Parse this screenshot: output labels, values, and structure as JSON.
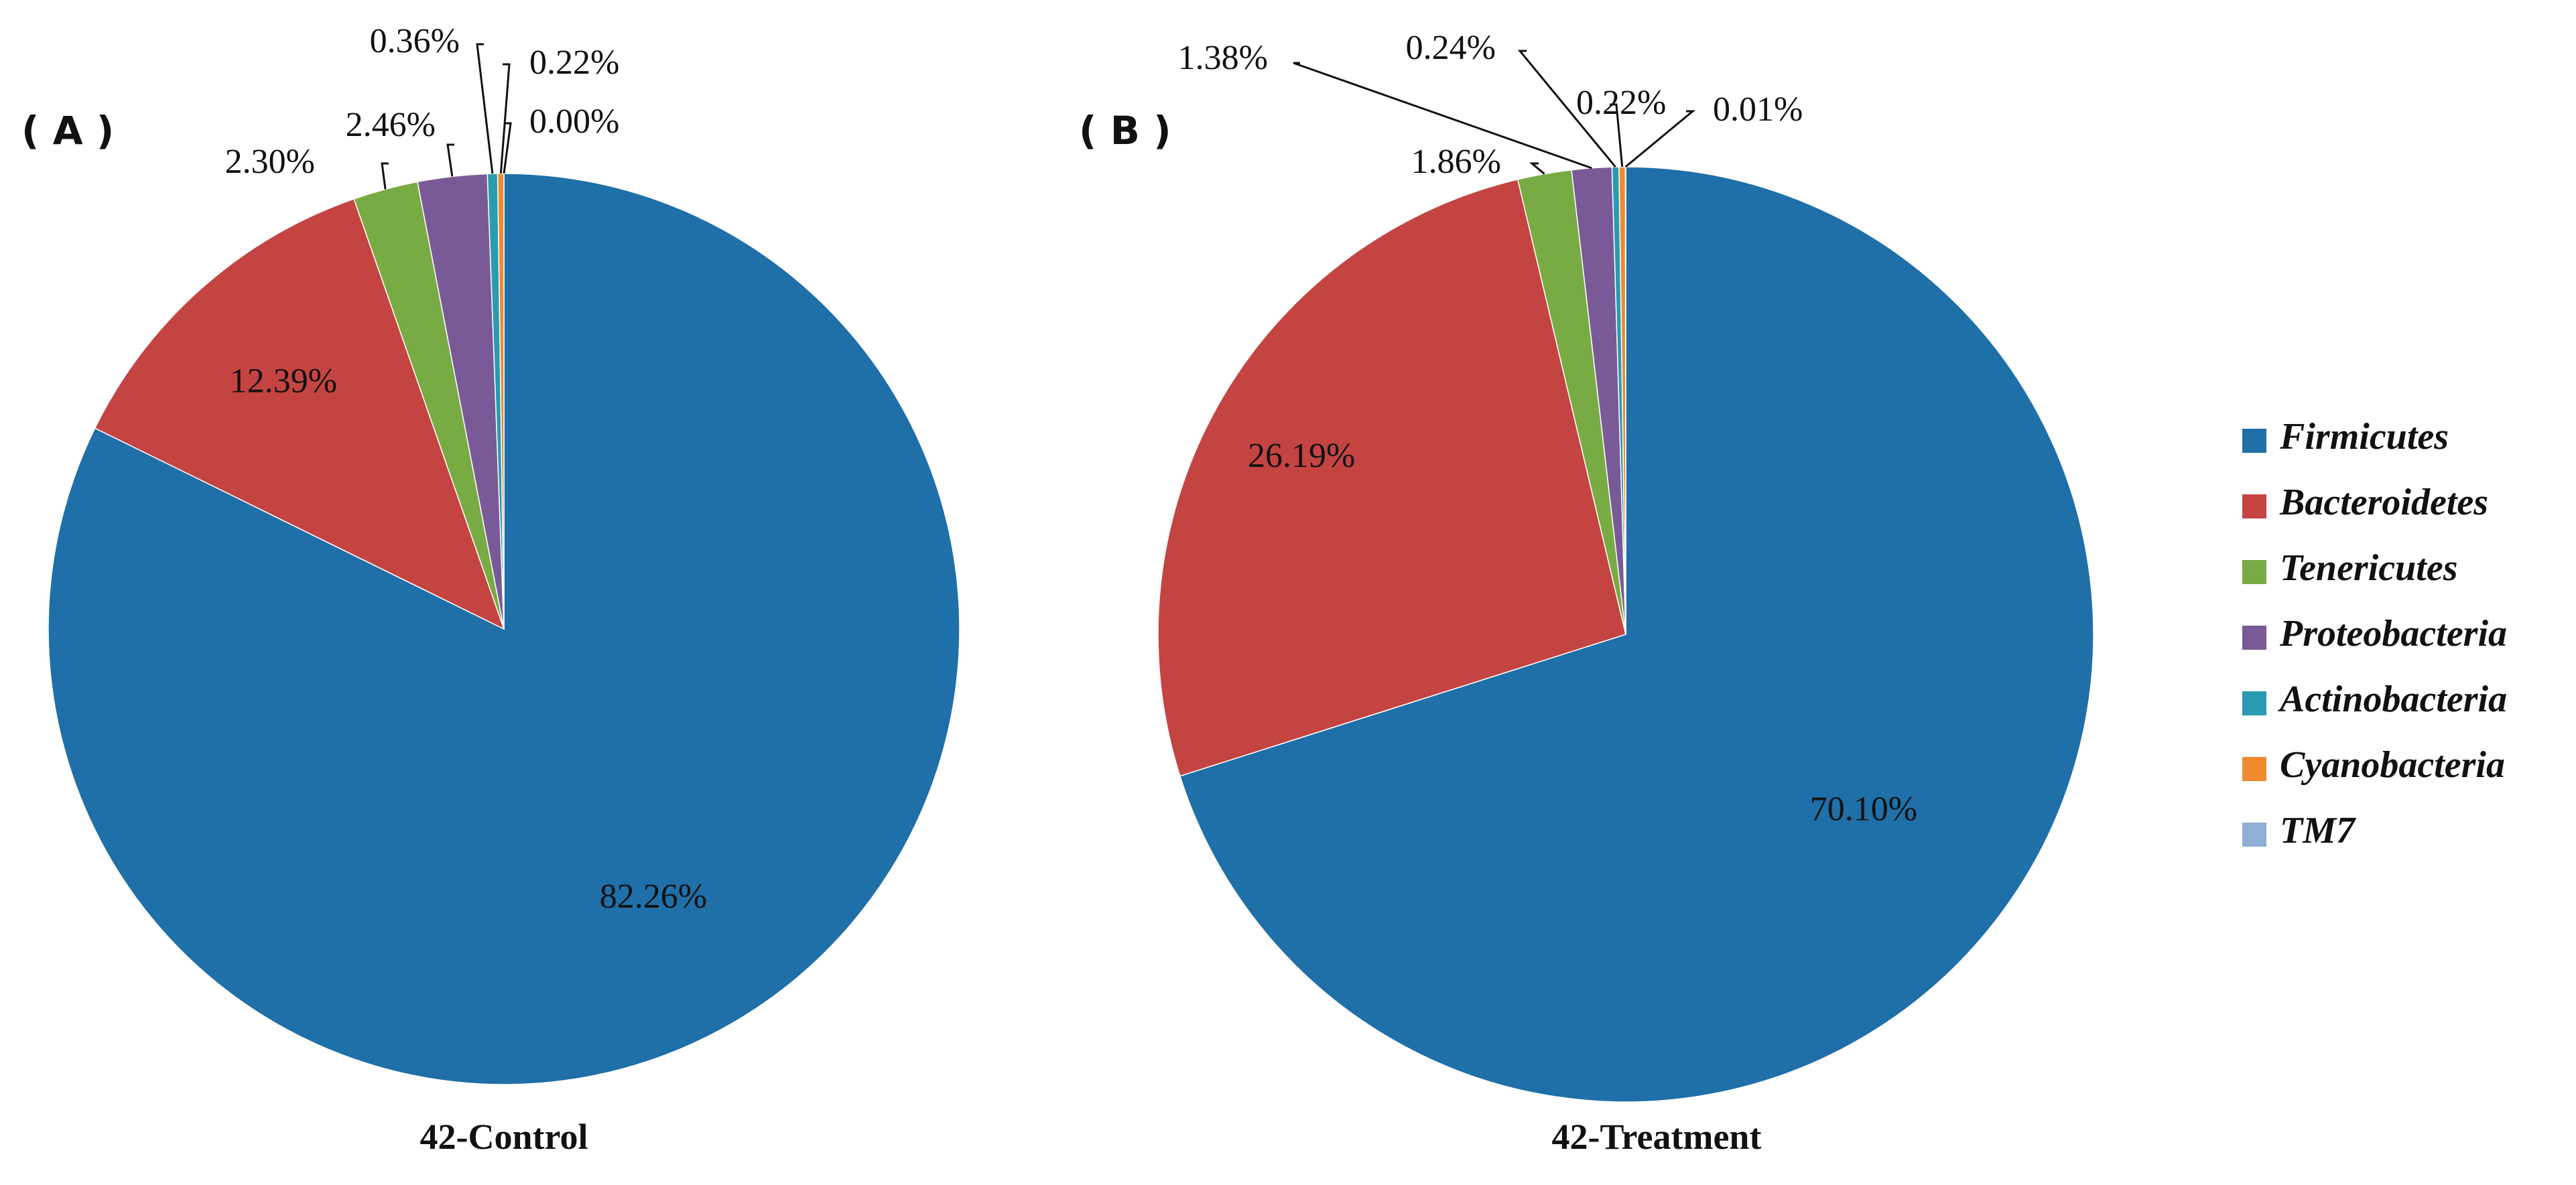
{
  "chart_data": [
    {
      "type": "pie",
      "panel": "( A )",
      "title": "42-Control",
      "categories": [
        "Firmicutes",
        "Bacteroidetes",
        "Tenericutes",
        "Proteobacteria",
        "Actinobacteria",
        "Cyanobacteria",
        "TM7"
      ],
      "values": [
        82.26,
        12.39,
        2.3,
        2.46,
        0.36,
        0.22,
        0.0
      ],
      "labels": [
        "82.26%",
        "12.39%",
        "2.30%",
        "2.46%",
        "0.36%",
        "0.22%",
        "0.00%"
      ],
      "start": "12 o'clock, clockwise"
    },
    {
      "type": "pie",
      "panel": "( B )",
      "title": "42-Treatment",
      "categories": [
        "Firmicutes",
        "Bacteroidetes",
        "Tenericutes",
        "Proteobacteria",
        "Actinobacteria",
        "Cyanobacteria",
        "TM7"
      ],
      "values": [
        70.1,
        26.19,
        1.86,
        1.38,
        0.24,
        0.22,
        0.01
      ],
      "labels": [
        "70.10%",
        "26.19%",
        "1.86%",
        "1.38%",
        "0.24%",
        "0.22%",
        "0.01%"
      ],
      "start": "12 o'clock, clockwise"
    }
  ],
  "legend": {
    "placement": "right",
    "items": [
      {
        "label": "Firmicutes",
        "color": "#1f6fa8"
      },
      {
        "label": "Bacteroidetes",
        "color": "#c44442"
      },
      {
        "label": "Tenericutes",
        "color": "#79ab44"
      },
      {
        "label": "Proteobacteria",
        "color": "#7a5a96"
      },
      {
        "label": "Actinobacteria",
        "color": "#2a9bb0"
      },
      {
        "label": "Cyanobacteria",
        "color": "#f08a2e"
      },
      {
        "label": "TM7",
        "color": "#8faed8"
      }
    ]
  }
}
